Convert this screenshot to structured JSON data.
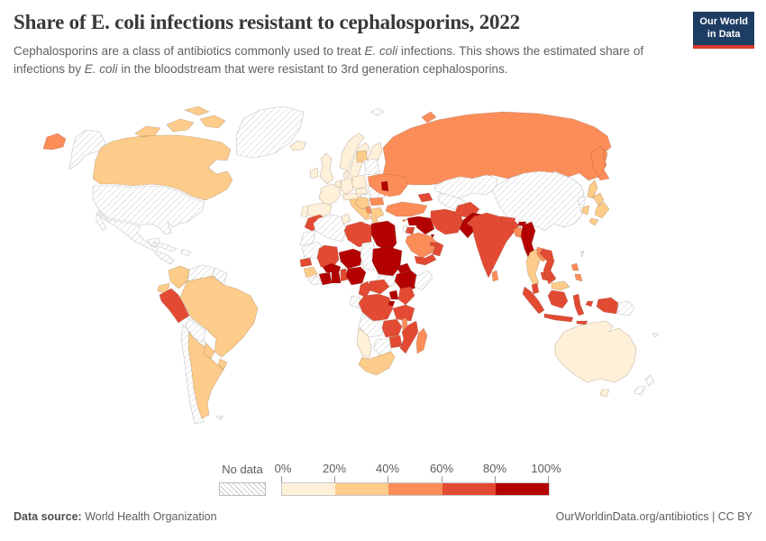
{
  "header": {
    "title": "Share of E. coli infections resistant to cephalosporins, 2022",
    "subtitle_segments": [
      {
        "t": "Cephalosporins are a class of antibiotics commonly used to treat "
      },
      {
        "t": "E. coli",
        "i": true
      },
      {
        "t": " infections. This shows the estimated share of infections by "
      },
      {
        "t": "E. coli",
        "i": true
      },
      {
        "t": " in the bloodstream that were resistant to 3rd generation cephalosporins."
      }
    ],
    "logo": {
      "line1": "Our World",
      "line2": "in Data",
      "bg": "#1d3d63",
      "accent": "#d93a2b"
    }
  },
  "legend": {
    "no_data_label": "No data",
    "ticks": [
      "0%",
      "20%",
      "40%",
      "60%",
      "80%",
      "100%"
    ]
  },
  "footer": {
    "source_label": "Data source:",
    "source_value": " World Health Organization",
    "right_text": "OurWorldinData.org/antibiotics | CC BY"
  },
  "chart_data": {
    "type": "choropleth",
    "title": "Share of E. coli infections resistant to cephalosporins, 2022",
    "unit": "%",
    "legend_position": "bottom",
    "bin_colors": {
      "b0": "#fef0d9",
      "b1": "#fdcc8a",
      "b2": "#fc8d59",
      "b3": "#e34a33",
      "b4": "#b30000"
    },
    "bin_ranges": {
      "b0": "0-20%",
      "b1": "20-40%",
      "b2": "40-60%",
      "b3": "60-80%",
      "b4": "80-100%",
      "no_data": "No data"
    },
    "border_color": "rgba(115,75,55,0.38)",
    "no_data_border": "#c4c4c4",
    "countries": [
      {
        "id": "greenland",
        "name": "Greenland",
        "bin": "no_data"
      },
      {
        "id": "alaska",
        "name": "United States (Alaska)",
        "bin": "no_data"
      },
      {
        "id": "chukotka",
        "name": "Russia (far east)",
        "bin": "b2"
      },
      {
        "id": "canada",
        "name": "Canada",
        "bin": "b1"
      },
      {
        "id": "usa",
        "name": "United States",
        "bin": "no_data"
      },
      {
        "id": "mexico",
        "name": "Mexico",
        "bin": "no_data"
      },
      {
        "id": "central-america",
        "name": "Central America",
        "bin": "no_data"
      },
      {
        "id": "cuba",
        "name": "Cuba",
        "bin": "no_data"
      },
      {
        "id": "hispaniola",
        "name": "Hispaniola",
        "bin": "no_data"
      },
      {
        "id": "colombia",
        "name": "Colombia",
        "bin": "b1"
      },
      {
        "id": "venezuela",
        "name": "Venezuela",
        "bin": "no_data"
      },
      {
        "id": "guyanas",
        "name": "Guyana and Suriname",
        "bin": "no_data"
      },
      {
        "id": "ecuador",
        "name": "Ecuador",
        "bin": "b1"
      },
      {
        "id": "peru",
        "name": "Peru",
        "bin": "b3"
      },
      {
        "id": "brazil",
        "name": "Brazil",
        "bin": "b1"
      },
      {
        "id": "bolivia",
        "name": "Bolivia",
        "bin": "no_data"
      },
      {
        "id": "paraguay",
        "name": "Paraguay",
        "bin": "b1"
      },
      {
        "id": "uruguay",
        "name": "Uruguay",
        "bin": "b1"
      },
      {
        "id": "argentina",
        "name": "Argentina",
        "bin": "b1"
      },
      {
        "id": "chile",
        "name": "Chile",
        "bin": "no_data"
      },
      {
        "id": "falklands",
        "name": "Falkland Islands",
        "bin": "no_data"
      },
      {
        "id": "iceland",
        "name": "Iceland",
        "bin": "b0"
      },
      {
        "id": "ireland",
        "name": "Ireland",
        "bin": "b0"
      },
      {
        "id": "uk",
        "name": "United Kingdom",
        "bin": "b0"
      },
      {
        "id": "norway",
        "name": "Norway",
        "bin": "b0"
      },
      {
        "id": "sweden",
        "name": "Sweden",
        "bin": "b0"
      },
      {
        "id": "finland",
        "name": "Finland",
        "bin": "b0"
      },
      {
        "id": "baltics",
        "name": "Baltic states",
        "bin": "b1"
      },
      {
        "id": "belarus",
        "name": "Belarus",
        "bin": "no_data"
      },
      {
        "id": "denmark",
        "name": "Denmark",
        "bin": "b0"
      },
      {
        "id": "germany",
        "name": "Germany",
        "bin": "b0"
      },
      {
        "id": "benelux",
        "name": "Benelux",
        "bin": "b0"
      },
      {
        "id": "france",
        "name": "France",
        "bin": "b0"
      },
      {
        "id": "spain",
        "name": "Spain",
        "bin": "b0"
      },
      {
        "id": "portugal",
        "name": "Portugal",
        "bin": "b0"
      },
      {
        "id": "italy",
        "name": "Italy",
        "bin": "b1"
      },
      {
        "id": "alpine",
        "name": "Switzerland and Austria",
        "bin": "b0"
      },
      {
        "id": "czech-slovakia",
        "name": "Czechia and Slovakia",
        "bin": "b0"
      },
      {
        "id": "poland",
        "name": "Poland",
        "bin": "b0"
      },
      {
        "id": "hungary",
        "name": "Hungary",
        "bin": "no_data"
      },
      {
        "id": "romania",
        "name": "Romania",
        "bin": "no_data"
      },
      {
        "id": "bulgaria",
        "name": "Bulgaria",
        "bin": "b2"
      },
      {
        "id": "balkans",
        "name": "Western Balkans",
        "bin": "b1"
      },
      {
        "id": "albania",
        "name": "Albania",
        "bin": "b2"
      },
      {
        "id": "greece",
        "name": "Greece",
        "bin": "b1"
      },
      {
        "id": "ukraine",
        "name": "Ukraine",
        "bin": "b2"
      },
      {
        "id": "moldova",
        "name": "Moldova",
        "bin": "b4"
      },
      {
        "id": "svalbard",
        "name": "Svalbard",
        "bin": "no_data"
      },
      {
        "id": "russia",
        "name": "Russia",
        "bin": "b2"
      },
      {
        "id": "sakhalin",
        "name": "Sakhalin",
        "bin": "b1"
      },
      {
        "id": "kazakhstan",
        "name": "Kazakhstan",
        "bin": "no_data"
      },
      {
        "id": "uzbek-turkmen",
        "name": "Uzbekistan and Turkmenistan",
        "bin": "no_data"
      },
      {
        "id": "caucasus",
        "name": "Georgia, Armenia and Azerbaijan",
        "bin": "b3"
      },
      {
        "id": "turkey",
        "name": "Turkey",
        "bin": "b2"
      },
      {
        "id": "cyprus",
        "name": "Cyprus",
        "bin": "b2"
      },
      {
        "id": "syria",
        "name": "Syria",
        "bin": "b4"
      },
      {
        "id": "israel",
        "name": "Israel",
        "bin": "no_data"
      },
      {
        "id": "jordan",
        "name": "Jordan",
        "bin": "b3"
      },
      {
        "id": "iraq",
        "name": "Iraq",
        "bin": "b4"
      },
      {
        "id": "iran",
        "name": "Iran",
        "bin": "b3"
      },
      {
        "id": "saudi",
        "name": "Saudi Arabia",
        "bin": "b2"
      },
      {
        "id": "kuwait",
        "name": "Kuwait",
        "bin": "b4"
      },
      {
        "id": "yemen",
        "name": "Yemen",
        "bin": "b3"
      },
      {
        "id": "oman",
        "name": "Oman",
        "bin": "b3"
      },
      {
        "id": "uae",
        "name": "United Arab Emirates",
        "bin": "b3"
      },
      {
        "id": "morocco",
        "name": "Morocco",
        "bin": "b3"
      },
      {
        "id": "w-sahara",
        "name": "Western Sahara",
        "bin": "no_data"
      },
      {
        "id": "algeria",
        "name": "Algeria",
        "bin": "no_data"
      },
      {
        "id": "tunisia",
        "name": "Tunisia",
        "bin": "b0"
      },
      {
        "id": "libya",
        "name": "Libya",
        "bin": "b3"
      },
      {
        "id": "egypt",
        "name": "Egypt",
        "bin": "b4"
      },
      {
        "id": "mauritania",
        "name": "Mauritania",
        "bin": "no_data"
      },
      {
        "id": "mali",
        "name": "Mali",
        "bin": "b3"
      },
      {
        "id": "senegal",
        "name": "Senegal",
        "bin": "b3"
      },
      {
        "id": "guinea",
        "name": "Guinea",
        "bin": "b1"
      },
      {
        "id": "sierra-liberia",
        "name": "Sierra Leone and Liberia",
        "bin": "no_data"
      },
      {
        "id": "ivory-coast",
        "name": "Cote d'Ivoire",
        "bin": "b4"
      },
      {
        "id": "ghana",
        "name": "Ghana",
        "bin": "b4"
      },
      {
        "id": "togo-benin",
        "name": "Togo and Benin",
        "bin": "b3"
      },
      {
        "id": "burkina",
        "name": "Burkina Faso",
        "bin": "b4"
      },
      {
        "id": "niger",
        "name": "Niger",
        "bin": "b4"
      },
      {
        "id": "nigeria",
        "name": "Nigeria",
        "bin": "b4"
      },
      {
        "id": "chad",
        "name": "Chad",
        "bin": "no_data"
      },
      {
        "id": "sudan",
        "name": "Sudan",
        "bin": "b4"
      },
      {
        "id": "eritrea",
        "name": "Eritrea",
        "bin": "b4"
      },
      {
        "id": "ethiopia",
        "name": "Ethiopia",
        "bin": "b4"
      },
      {
        "id": "somalia",
        "name": "Somalia",
        "bin": "no_data"
      },
      {
        "id": "south-sudan",
        "name": "South Sudan",
        "bin": "no_data"
      },
      {
        "id": "cameroon",
        "name": "Cameroon",
        "bin": "b3"
      },
      {
        "id": "car",
        "name": "Central African Republic",
        "bin": "b3"
      },
      {
        "id": "gabon-congo",
        "name": "Gabon and Congo",
        "bin": "no_data"
      },
      {
        "id": "drc",
        "name": "Democratic Republic of Congo",
        "bin": "b3"
      },
      {
        "id": "uganda",
        "name": "Uganda",
        "bin": "b4"
      },
      {
        "id": "kenya",
        "name": "Kenya",
        "bin": "b3"
      },
      {
        "id": "rwanda-burundi",
        "name": "Rwanda and Burundi",
        "bin": "b4"
      },
      {
        "id": "tanzania",
        "name": "Tanzania",
        "bin": "b3"
      },
      {
        "id": "angola",
        "name": "Angola",
        "bin": "no_data"
      },
      {
        "id": "zambia",
        "name": "Zambia",
        "bin": "b3"
      },
      {
        "id": "malawi",
        "name": "Malawi",
        "bin": "b2"
      },
      {
        "id": "mozambique",
        "name": "Mozambique",
        "bin": "b3"
      },
      {
        "id": "zimbabwe",
        "name": "Zimbabwe",
        "bin": "b3"
      },
      {
        "id": "botswana",
        "name": "Botswana",
        "bin": "no_data"
      },
      {
        "id": "namibia",
        "name": "Namibia",
        "bin": "b0"
      },
      {
        "id": "south-africa",
        "name": "South Africa",
        "bin": "b1"
      },
      {
        "id": "madagascar",
        "name": "Madagascar",
        "bin": "b2"
      },
      {
        "id": "afghanistan",
        "name": "Afghanistan",
        "bin": "b3"
      },
      {
        "id": "pakistan",
        "name": "Pakistan",
        "bin": "b4"
      },
      {
        "id": "india",
        "name": "India",
        "bin": "b3"
      },
      {
        "id": "nepal",
        "name": "Nepal",
        "bin": "b3"
      },
      {
        "id": "bhutan",
        "name": "Bhutan",
        "bin": "b4"
      },
      {
        "id": "bangladesh",
        "name": "Bangladesh",
        "bin": "b2"
      },
      {
        "id": "myanmar",
        "name": "Myanmar",
        "bin": "b4"
      },
      {
        "id": "sri-lanka",
        "name": "Sri Lanka",
        "bin": "b2"
      },
      {
        "id": "thailand",
        "name": "Thailand",
        "bin": "b1"
      },
      {
        "id": "laos",
        "name": "Laos",
        "bin": "b2"
      },
      {
        "id": "vietnam",
        "name": "Vietnam",
        "bin": "b3"
      },
      {
        "id": "cambodia",
        "name": "Cambodia",
        "bin": "b3"
      },
      {
        "id": "malaysia-pen",
        "name": "Malaysia (peninsular)",
        "bin": "b3"
      },
      {
        "id": "malaysia-borneo",
        "name": "Malaysia (Borneo)",
        "bin": "b1"
      },
      {
        "id": "philippines",
        "name": "Philippines",
        "bin": "b2"
      },
      {
        "id": "indonesia",
        "name": "Indonesia",
        "bin": "b3"
      },
      {
        "id": "png",
        "name": "Papua New Guinea",
        "bin": "no_data"
      },
      {
        "id": "taiwan",
        "name": "Taiwan",
        "bin": "no_data"
      },
      {
        "id": "china",
        "name": "China",
        "bin": "no_data"
      },
      {
        "id": "mongolia",
        "name": "Mongolia",
        "bin": "no_data"
      },
      {
        "id": "nkorea",
        "name": "North Korea",
        "bin": "no_data"
      },
      {
        "id": "skorea",
        "name": "South Korea",
        "bin": "b1"
      },
      {
        "id": "japan",
        "name": "Japan",
        "bin": "b1"
      },
      {
        "id": "australia",
        "name": "Australia",
        "bin": "b0"
      },
      {
        "id": "tasmania",
        "name": "Australia (Tasmania)",
        "bin": "b0"
      },
      {
        "id": "nz",
        "name": "New Zealand",
        "bin": "no_data"
      },
      {
        "id": "new-caledonia",
        "name": "New Caledonia",
        "bin": "no_data"
      }
    ]
  }
}
